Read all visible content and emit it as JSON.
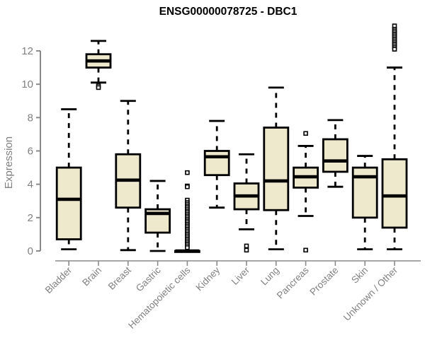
{
  "chart_data": {
    "type": "boxplot",
    "title": "ENSG00000078725 - DBC1",
    "ylabel": "Expression",
    "xlabel": "",
    "ylim": [
      0,
      12
    ],
    "yticks": [
      0,
      2,
      4,
      6,
      8,
      10,
      12
    ],
    "grid": false,
    "legend": false,
    "outlier_marker": "open-square",
    "categories": [
      "Bladder",
      "Brain",
      "Breast",
      "Gastric",
      "Hematopoietic cells",
      "Kidney",
      "Liver",
      "Lung",
      "Pancreas",
      "Prostate",
      "Skin",
      "Unknown / Other"
    ],
    "series": [
      {
        "name": "Bladder",
        "low": 0.1,
        "q1": 0.7,
        "median": 3.1,
        "q3": 5.0,
        "high": 8.5,
        "outliers": []
      },
      {
        "name": "Brain",
        "low": 10.1,
        "q1": 11.0,
        "median": 11.4,
        "q3": 11.8,
        "high": 12.6,
        "outliers": [
          9.9,
          9.8
        ]
      },
      {
        "name": "Breast",
        "low": 0.05,
        "q1": 2.6,
        "median": 4.25,
        "q3": 5.8,
        "high": 9.0,
        "outliers": []
      },
      {
        "name": "Gastric",
        "low": 0.0,
        "q1": 1.1,
        "median": 2.25,
        "q3": 2.5,
        "high": 4.2,
        "outliers": []
      },
      {
        "name": "Hematopoietic cells",
        "low": 0,
        "q1": 0,
        "median": 0,
        "q3": 0,
        "high": 0,
        "outliers": [
          4.7,
          3.9,
          3.85,
          3.05,
          2.9,
          2.8,
          2.7,
          2.6,
          2.5,
          2.4,
          2.3,
          2.2,
          2.1,
          2.0,
          1.9,
          1.8,
          1.7,
          1.6,
          1.5,
          1.4,
          1.3,
          1.2,
          1.1,
          1.0,
          0.9,
          0.8,
          0.7,
          0.6,
          0.5,
          0.4,
          0.3,
          0.2
        ]
      },
      {
        "name": "Kidney",
        "low": 2.6,
        "q1": 4.55,
        "median": 5.65,
        "q3": 6.0,
        "high": 7.8,
        "outliers": []
      },
      {
        "name": "Liver",
        "low": 1.3,
        "q1": 2.5,
        "median": 3.3,
        "q3": 4.05,
        "high": 5.8,
        "outliers": [
          0.3,
          0.05
        ]
      },
      {
        "name": "Lung",
        "low": 0.1,
        "q1": 2.45,
        "median": 4.2,
        "q3": 7.4,
        "high": 9.8,
        "outliers": []
      },
      {
        "name": "Pancreas",
        "low": 2.1,
        "q1": 3.8,
        "median": 4.45,
        "q3": 5.0,
        "high": 6.3,
        "outliers": [
          7.05,
          0.05
        ]
      },
      {
        "name": "Prostate",
        "low": 3.85,
        "q1": 4.75,
        "median": 5.4,
        "q3": 6.7,
        "high": 7.85,
        "outliers": []
      },
      {
        "name": "Skin",
        "low": 0.1,
        "q1": 2.0,
        "median": 4.45,
        "q3": 5.0,
        "high": 5.7,
        "outliers": []
      },
      {
        "name": "Unknown / Other",
        "low": 0.1,
        "q1": 1.4,
        "median": 3.3,
        "q3": 5.5,
        "high": 11.0,
        "outliers": [
          13.5,
          13.3,
          13.2,
          13.1,
          13.0,
          12.9,
          12.8,
          12.7,
          12.6,
          12.5,
          12.4,
          12.3,
          12.2,
          12.1
        ]
      }
    ],
    "colors": {
      "box_fill": "#EEE8CD",
      "box_border": "#000000",
      "median": "#000000",
      "axis": "#8a8a8a",
      "labels": "#808080",
      "title": "#000000",
      "background": "#ffffff"
    }
  }
}
